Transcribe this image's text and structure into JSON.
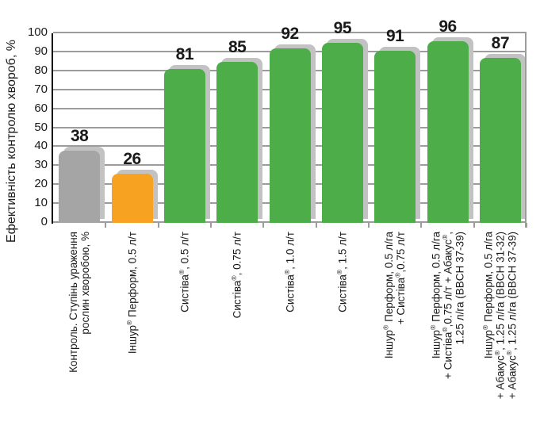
{
  "chart_data": {
    "type": "bar",
    "title": "",
    "ylabel": "Ефективність контролю хвороб, %",
    "xlabel": "",
    "ylim": [
      0,
      100
    ],
    "ytick_step": 10,
    "yticks": [
      0,
      10,
      20,
      30,
      40,
      50,
      60,
      70,
      80,
      90,
      100
    ],
    "grid": true,
    "legend": false,
    "categories": [
      [
        "Контроль. Ступінь ураження",
        "рослин хворобою, %"
      ],
      [
        "Іншур® Перформ, 0.5 л/т"
      ],
      [
        "Систіва®, 0.5 л/т"
      ],
      [
        "Систіва®, 0.75 л/т"
      ],
      [
        "Систіва®, 1.0 л/т"
      ],
      [
        "Систіва®, 1.5 л/т"
      ],
      [
        "Іншур® Перформ, 0.5 л/га",
        "+ Систіва®,0.75 л/т"
      ],
      [
        "Іншур® Перформ, 0.5 л/га",
        "+ Систіва®,0.75 л/т + Абакус®,",
        "1.25 л/га (BBCH 37-39)"
      ],
      [
        "Іншур® Перформ, 0.5 л/га",
        "+ Абакус®, 1.25 л/га (BBCH 31-32)",
        "+ Абакус®, 1.25 л/га (BBCH 37-39)"
      ]
    ],
    "values": [
      38,
      26,
      81,
      85,
      92,
      95,
      91,
      96,
      87
    ],
    "bar_colors": [
      "#A5A5A5",
      "#F7A220",
      "#4CAD49",
      "#4CAD49",
      "#4CAD49",
      "#4CAD49",
      "#4CAD49",
      "#4CAD49",
      "#4CAD49"
    ]
  },
  "colors": {
    "green": "#4CAD49",
    "orange": "#F7A220",
    "gray_bar": "#A5A5A5",
    "bar_shadow": "#C2C2C2",
    "gridline": "#9C9C9C",
    "axis": "#000000",
    "text": "#1A1A1A",
    "background": "#FFFFFF"
  }
}
